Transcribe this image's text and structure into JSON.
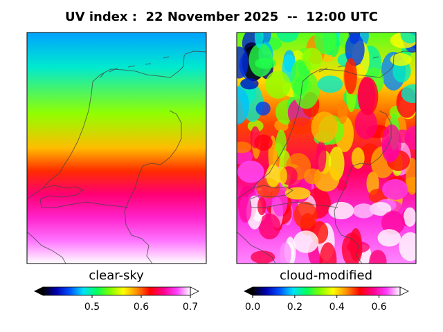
{
  "title": "UV index :  22 November 2025  --  12:00 UTC",
  "chart_data": [
    {
      "type": "heatmap",
      "label": "clear-sky",
      "colorbar": {
        "range": [
          0.4,
          0.7
        ],
        "ticks": [
          0.5,
          0.6,
          0.7
        ],
        "tick_labels": [
          "0.5",
          "0.6",
          "0.7"
        ],
        "extend": "both"
      },
      "field_profile": {
        "description_of_gradient": "north-to-south increase",
        "y_fraction": [
          0.0,
          0.15,
          0.35,
          0.5,
          0.6,
          0.7,
          0.8,
          0.9,
          1.0
        ],
        "values": [
          0.47,
          0.49,
          0.54,
          0.58,
          0.61,
          0.64,
          0.66,
          0.68,
          0.7
        ]
      }
    },
    {
      "type": "heatmap",
      "label": "cloud-modified",
      "colorbar": {
        "range": [
          0.0,
          0.7
        ],
        "ticks": [
          0.0,
          0.2,
          0.4,
          0.6
        ],
        "tick_labels": [
          "0.0",
          "0.2",
          "0.4",
          "0.6"
        ],
        "extend": "both"
      },
      "field_profile": {
        "description_of_gradient": "patchy, low in north-west, high in south",
        "y_fraction": [
          0.0,
          0.2,
          0.4,
          0.6,
          0.8,
          1.0
        ],
        "values": [
          0.3,
          0.4,
          0.48,
          0.55,
          0.62,
          0.66
        ]
      }
    }
  ],
  "colormap": [
    "#000000",
    "#0000b0",
    "#0050ff",
    "#00e0ff",
    "#00ff60",
    "#80ff00",
    "#ffff00",
    "#ff9000",
    "#ff0000",
    "#ff0090",
    "#ff40ff",
    "#ffffff"
  ]
}
